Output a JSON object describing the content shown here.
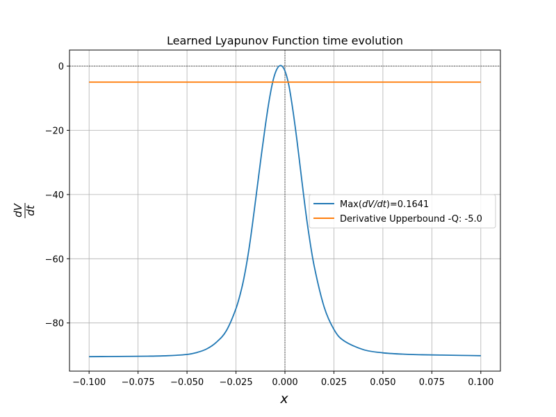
{
  "chart_data": {
    "type": "line",
    "title": "Learned Lyapunov Function time evolution",
    "xlabel": "x",
    "ylabel": {
      "numerator": "dV",
      "denominator": "dt"
    },
    "xlim": [
      -0.11,
      0.11
    ],
    "ylim": [
      -95,
      5
    ],
    "xticks": [
      -0.1,
      -0.075,
      -0.05,
      -0.025,
      0.0,
      0.025,
      0.05,
      0.075,
      0.1
    ],
    "xtick_labels": [
      "−0.100",
      "−0.075",
      "−0.050",
      "−0.025",
      "0.000",
      "0.025",
      "0.050",
      "0.075",
      "0.100"
    ],
    "yticks": [
      0,
      -20,
      -40,
      -60,
      -80
    ],
    "ytick_labels": [
      "0",
      "−20",
      "−40",
      "−60",
      "−80"
    ],
    "grid": true,
    "reference_lines": {
      "horizontal_y": 0,
      "vertical_x": 0
    },
    "legend_position": "center-right",
    "series": [
      {
        "name": "Max(dV/dt)=0.1641",
        "color": "#1f77b4",
        "x": [
          -0.1,
          -0.09,
          -0.08,
          -0.07,
          -0.06,
          -0.05,
          -0.045,
          -0.04,
          -0.035,
          -0.03,
          -0.025,
          -0.022,
          -0.02,
          -0.018,
          -0.016,
          -0.014,
          -0.012,
          -0.01,
          -0.008,
          -0.006,
          -0.004,
          -0.002,
          0.0,
          0.002,
          0.004,
          0.006,
          0.008,
          0.01,
          0.012,
          0.015,
          0.02,
          0.025,
          0.03,
          0.04,
          0.05,
          0.06,
          0.07,
          0.08,
          0.09,
          0.1
        ],
        "y": [
          -90.5,
          -90.45,
          -90.4,
          -90.35,
          -90.2,
          -89.8,
          -89.2,
          -88.1,
          -86.0,
          -82.5,
          -75.5,
          -69.0,
          -63.0,
          -55.5,
          -46.5,
          -37.0,
          -27.5,
          -18.5,
          -10.5,
          -4.3,
          -0.8,
          0.16,
          -1.5,
          -6.0,
          -13.5,
          -22.5,
          -32.5,
          -42.5,
          -51.5,
          -62.5,
          -75.0,
          -82.0,
          -85.5,
          -88.3,
          -89.3,
          -89.7,
          -89.9,
          -90.0,
          -90.1,
          -90.2
        ]
      },
      {
        "name": "Derivative Upperbound -Q: -5.0",
        "color": "#ff7f0e",
        "x": [
          -0.1,
          0.1
        ],
        "y": [
          -5.0,
          -5.0
        ]
      }
    ]
  },
  "legend_labels": {
    "series0_prefix": "Max(",
    "series0_expr": "dV/dt",
    "series0_suffix": ")=0.1641",
    "series1": "Derivative Upperbound -Q: -5.0"
  }
}
